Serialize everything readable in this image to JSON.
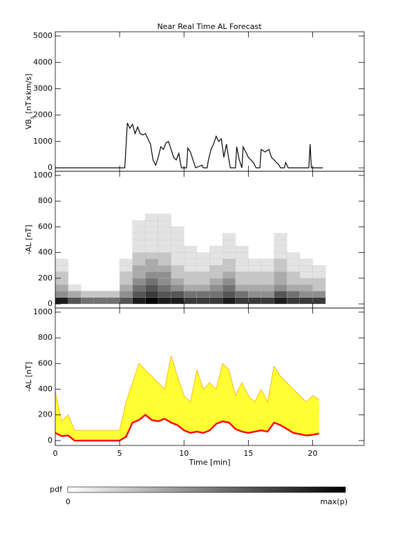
{
  "chart_data": [
    {
      "type": "line",
      "title": "Near Real Time AL Forecast",
      "ylabel": [
        "VB",
        "s",
        " [nT×km/s]"
      ],
      "xlim": [
        0,
        24
      ],
      "ylim": [
        -130,
        5160
      ],
      "yticks": [
        0,
        1000,
        2000,
        3000,
        4000,
        5000
      ],
      "color": "#000000",
      "x": [
        0,
        5.4,
        5.6,
        5.8,
        6.0,
        6.2,
        6.4,
        6.6,
        6.8,
        7.0,
        7.2,
        7.4,
        7.6,
        7.8,
        8.0,
        8.2,
        8.4,
        8.6,
        8.8,
        9.0,
        9.2,
        9.4,
        9.6,
        9.8,
        10.2,
        10.3,
        10.5,
        10.7,
        10.9,
        11.4,
        11.5,
        11.8,
        11.9,
        12.1,
        12.3,
        12.5,
        12.7,
        12.9,
        13.1,
        13.3,
        13.5,
        13.6,
        14.0,
        14.1,
        14.3,
        14.5,
        14.6,
        14.8,
        15.0,
        15.2,
        15.4,
        15.6,
        15.9,
        16.0,
        16.3,
        16.6,
        16.8,
        17.0,
        17.2,
        17.4,
        17.5,
        17.8,
        17.9,
        18.1,
        19.7,
        19.8,
        19.9,
        20.8
      ],
      "values": [
        0,
        0,
        1700,
        1500,
        1650,
        1300,
        1550,
        1300,
        1250,
        1300,
        1100,
        900,
        300,
        100,
        400,
        800,
        700,
        950,
        1000,
        700,
        400,
        300,
        550,
        0,
        0,
        750,
        600,
        300,
        0,
        100,
        0,
        0,
        300,
        700,
        900,
        1200,
        1000,
        1100,
        400,
        900,
        300,
        0,
        0,
        800,
        300,
        0,
        800,
        600,
        400,
        300,
        200,
        0,
        0,
        700,
        600,
        700,
        400,
        300,
        200,
        100,
        0,
        0,
        200,
        0,
        0,
        900,
        0,
        0
      ]
    },
    {
      "type": "heatmap",
      "ylabel": "-AL [nT]",
      "xlim": [
        0,
        24
      ],
      "ylim": [
        -32,
        1032
      ],
      "yticks": [
        0,
        200,
        400,
        600,
        800,
        1000
      ],
      "x_edges": [
        0,
        1,
        2,
        3,
        4,
        5,
        6,
        7,
        8,
        9,
        10,
        11,
        12,
        13,
        14,
        15,
        16,
        17,
        18,
        19,
        20,
        21
      ],
      "y_edges": [
        0,
        50,
        100,
        150,
        200,
        250,
        300,
        350,
        400,
        450,
        500,
        550,
        600,
        650,
        700
      ],
      "values": [
        [
          8,
          4,
          3,
          2,
          2,
          1,
          1,
          0,
          0,
          0,
          0,
          0,
          0,
          0
        ],
        [
          6,
          3,
          1,
          0,
          0,
          0,
          0,
          0,
          0,
          0,
          0,
          0,
          0,
          0
        ],
        [
          5,
          2,
          0,
          0,
          0,
          0,
          0,
          0,
          0,
          0,
          0,
          0,
          0,
          0
        ],
        [
          5,
          2,
          0,
          0,
          0,
          0,
          0,
          0,
          0,
          0,
          0,
          0,
          0,
          0
        ],
        [
          5,
          2,
          0,
          0,
          0,
          0,
          0,
          0,
          0,
          0,
          0,
          0,
          0,
          0
        ],
        [
          6,
          4,
          3,
          2,
          2,
          1,
          1,
          0,
          0,
          0,
          0,
          0,
          0,
          0
        ],
        [
          8,
          6,
          5,
          4,
          3,
          3,
          2,
          2,
          1,
          1,
          1,
          1,
          1,
          0
        ],
        [
          9,
          7,
          6,
          5,
          4,
          3,
          3,
          2,
          1,
          1,
          1,
          1,
          1,
          1
        ],
        [
          8,
          6,
          5,
          4,
          4,
          3,
          2,
          2,
          1,
          1,
          1,
          1,
          1,
          1
        ],
        [
          8,
          6,
          4,
          3,
          2,
          2,
          1,
          1,
          1,
          1,
          1,
          1,
          0,
          0
        ],
        [
          7,
          5,
          3,
          2,
          2,
          1,
          1,
          1,
          1,
          0,
          0,
          0,
          0,
          0
        ],
        [
          7,
          5,
          3,
          2,
          2,
          1,
          1,
          1,
          0,
          0,
          0,
          0,
          0,
          0
        ],
        [
          7,
          5,
          4,
          3,
          2,
          2,
          1,
          1,
          1,
          0,
          0,
          0,
          0,
          0
        ],
        [
          8,
          6,
          5,
          4,
          3,
          2,
          2,
          1,
          1,
          1,
          1,
          0,
          0,
          0
        ],
        [
          7,
          5,
          3,
          2,
          2,
          1,
          1,
          1,
          1,
          0,
          0,
          0,
          0,
          0
        ],
        [
          7,
          4,
          3,
          2,
          2,
          1,
          1,
          0,
          0,
          0,
          0,
          0,
          0,
          0
        ],
        [
          7,
          4,
          3,
          2,
          2,
          1,
          1,
          0,
          0,
          0,
          0,
          0,
          0,
          0
        ],
        [
          8,
          6,
          4,
          3,
          3,
          2,
          2,
          1,
          1,
          1,
          1,
          0,
          0,
          0
        ],
        [
          7,
          5,
          3,
          2,
          2,
          1,
          1,
          1,
          0,
          0,
          0,
          0,
          0,
          0
        ],
        [
          7,
          4,
          3,
          2,
          1,
          1,
          1,
          0,
          0,
          0,
          0,
          0,
          0,
          0
        ],
        [
          7,
          4,
          2,
          2,
          1,
          1,
          0,
          0,
          0,
          0,
          0,
          0,
          0,
          0
        ]
      ],
      "colorbar": {
        "label": "pdf",
        "min_label": "0",
        "max_label": "max(p)"
      }
    },
    {
      "type": "band",
      "ylabel": "-AL [nT]",
      "xlabel": "Time [min]",
      "xlim": [
        0,
        24
      ],
      "ylim": [
        -38,
        1032
      ],
      "xticks": [
        0,
        5,
        10,
        15,
        20
      ],
      "yticks": [
        0,
        200,
        400,
        600,
        800,
        1000
      ],
      "median_color": "#ff0000",
      "band_color": "#ffff33",
      "upper_color": "#ffa500",
      "x": [
        0,
        0.5,
        1,
        1.5,
        2,
        2.5,
        3,
        3.5,
        4,
        4.5,
        5,
        5.5,
        6,
        6.5,
        7,
        7.5,
        8,
        8.5,
        9,
        9.5,
        10,
        10.5,
        11,
        11.5,
        12,
        12.5,
        13,
        13.5,
        14,
        14.5,
        15,
        15.5,
        16,
        16.5,
        17,
        17.5,
        18,
        18.5,
        19,
        19.5,
        20,
        20.5
      ],
      "median": [
        60,
        35,
        40,
        0,
        0,
        0,
        0,
        0,
        0,
        0,
        0,
        30,
        140,
        160,
        200,
        160,
        150,
        170,
        140,
        120,
        80,
        60,
        70,
        60,
        80,
        130,
        150,
        140,
        90,
        70,
        60,
        70,
        80,
        70,
        140,
        120,
        90,
        60,
        50,
        40,
        45,
        55
      ],
      "upper": [
        380,
        150,
        200,
        80,
        80,
        80,
        80,
        80,
        80,
        80,
        80,
        300,
        450,
        600,
        550,
        500,
        450,
        400,
        660,
        500,
        350,
        300,
        550,
        400,
        450,
        400,
        600,
        550,
        350,
        450,
        350,
        300,
        400,
        300,
        580,
        500,
        450,
        400,
        350,
        300,
        350,
        320
      ]
    }
  ]
}
